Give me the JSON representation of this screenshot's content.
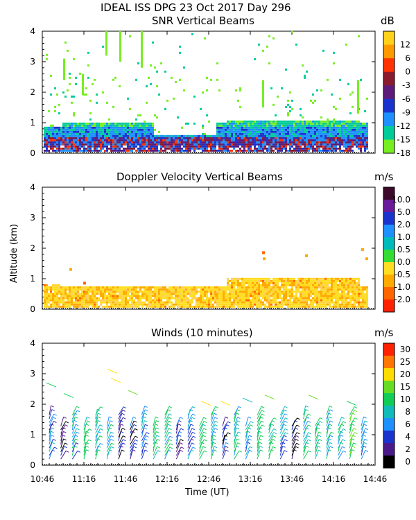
{
  "header": {
    "title": "IDEAL ISS DPG  23 Oct 2017 Day 296"
  },
  "chart_data": [
    {
      "type": "heatmap",
      "title": "SNR Vertical Beams",
      "ylabel": "",
      "ylim": [
        0,
        4
      ],
      "y_ticks": [
        "0",
        "1",
        "2",
        "3",
        "4"
      ],
      "colorbar": {
        "unit": "dB",
        "labels": [
          "12",
          "6",
          "0",
          "-3",
          "-6",
          "-9",
          "-12",
          "-15",
          "-18"
        ],
        "colors": [
          "#ffd11a",
          "#ff9900",
          "#ff3300",
          "#8a1a2e",
          "#5c1a7a",
          "#1a33cc",
          "#1e90ff",
          "#00cc99",
          "#77ee22"
        ]
      },
      "layers": [
        {
          "ymin": 0.0,
          "ymax": 0.5,
          "dominant": "-6"
        },
        {
          "ymin": 0.5,
          "ymax": 0.8,
          "dominant": "-12"
        },
        {
          "ymin": 0.8,
          "ymax": 1.1,
          "dominant": "-15"
        },
        {
          "ymin": 1.1,
          "ymax": 4.0,
          "dominant": "-18",
          "sparse": true
        }
      ]
    },
    {
      "type": "heatmap",
      "title": "Doppler Velocity Vertical Beams",
      "ylabel": "Altitude (km)",
      "ylim": [
        0,
        4
      ],
      "y_ticks": [
        "0",
        "1",
        "2",
        "3",
        "4"
      ],
      "colorbar": {
        "unit": "m/s",
        "labels": [
          "10.0",
          "5.0",
          "2.0",
          "1.0",
          "0.5",
          "0.0",
          "-0.5",
          "-1.0",
          "-2.0"
        ],
        "colors": [
          "#3b0a2a",
          "#6a1a9a",
          "#1a33cc",
          "#1e90ff",
          "#00bbbb",
          "#33dd33",
          "#ffdd22",
          "#ffaa00",
          "#ff6600",
          "#ff2200"
        ]
      },
      "layers": [
        {
          "ymin": 0.0,
          "ymax": 1.05,
          "dominant": "-0.5"
        }
      ]
    },
    {
      "type": "barbs",
      "title": "Winds (10 minutes)",
      "xlabel": "Time (UT)",
      "ylim": [
        0,
        4
      ],
      "y_ticks": [
        "0",
        "1",
        "2",
        "3",
        "4"
      ],
      "x_ticks": [
        "10:46",
        "11:16",
        "11:46",
        "12:16",
        "12:46",
        "13:16",
        "13:46",
        "14:16",
        "14:46"
      ],
      "colorbar": {
        "unit": "m/s",
        "labels": [
          "30",
          "25",
          "20",
          "15",
          "10",
          "8",
          "6",
          "4",
          "2",
          "0"
        ],
        "colors": [
          "#ff2200",
          "#ff7700",
          "#ffdd00",
          "#66dd22",
          "#11cc55",
          "#11bbbb",
          "#1e90ff",
          "#1a33cc",
          "#4a1a8a",
          "#000000"
        ]
      },
      "profile_speeds_ms": [
        6,
        4,
        8,
        12,
        10,
        9,
        3,
        4,
        7,
        12,
        10,
        4,
        6,
        12,
        9,
        4,
        10,
        8,
        12,
        11,
        7,
        3,
        9,
        12,
        10,
        8,
        14,
        8
      ]
    }
  ]
}
